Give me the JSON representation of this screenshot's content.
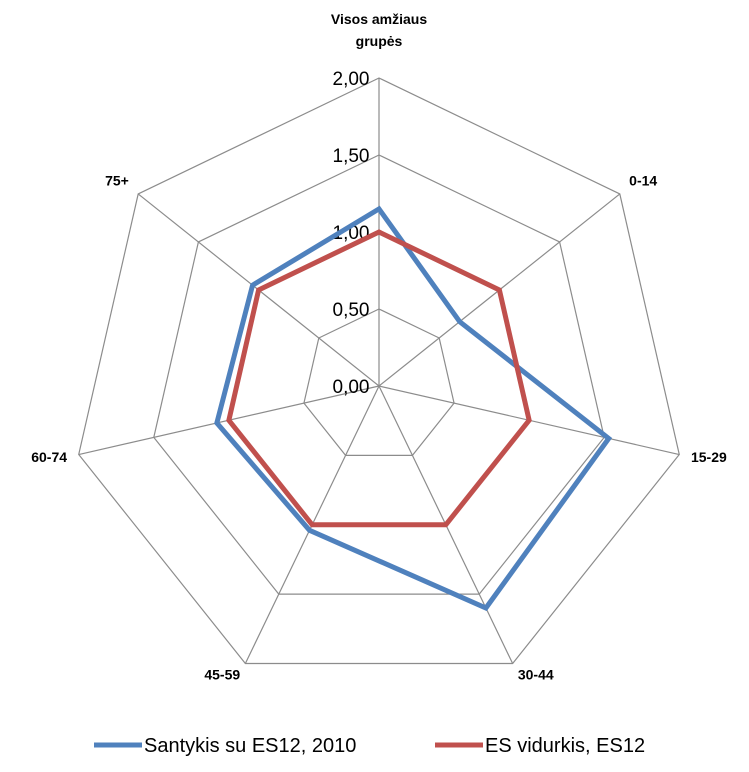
{
  "chart_data": {
    "type": "radar",
    "categories": [
      "Visos amžiaus grupės",
      "0-14",
      "15-29",
      "30-44",
      "45-59",
      "60-74",
      "75+"
    ],
    "radial_ticks": [
      "0,00",
      "0,50",
      "1,00",
      "1,50",
      "2,00"
    ],
    "rlim": [
      0,
      2
    ],
    "grid": true,
    "series": [
      {
        "name": "Santykis su ES12, 2010",
        "color": "#4F81BD",
        "values": [
          1.15,
          0.67,
          1.53,
          1.6,
          1.04,
          1.08,
          1.05
        ]
      },
      {
        "name": "ES vidurkis, ES12",
        "color": "#C0504D",
        "values": [
          1.0,
          1.0,
          1.0,
          1.0,
          1.0,
          1.0,
          1.0
        ]
      }
    ],
    "legend_position": "bottom"
  }
}
